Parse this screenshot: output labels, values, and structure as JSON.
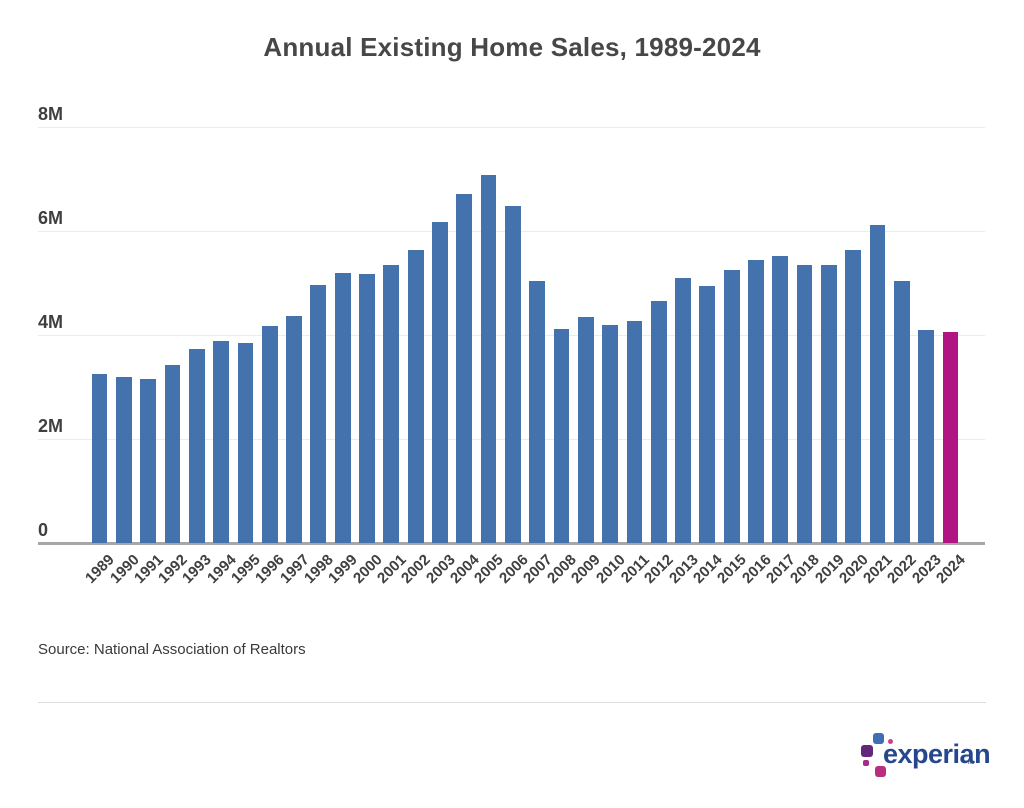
{
  "page": {
    "background": "#ffffff"
  },
  "header": {
    "title": "Annual Existing Home Sales, 1989-2024"
  },
  "chart_data": {
    "type": "bar",
    "title": "Annual Existing Home Sales, 1989-2024",
    "categories": [
      1989,
      1990,
      1991,
      1992,
      1993,
      1994,
      1995,
      1996,
      1997,
      1998,
      1999,
      2000,
      2001,
      2002,
      2003,
      2004,
      2005,
      2006,
      2007,
      2008,
      2009,
      2010,
      2011,
      2012,
      2013,
      2014,
      2015,
      2016,
      2017,
      2018,
      2019,
      2020,
      2021,
      2022,
      2023,
      2024
    ],
    "values": [
      3.25,
      3.19,
      3.15,
      3.42,
      3.74,
      3.89,
      3.85,
      4.18,
      4.37,
      4.97,
      5.19,
      5.17,
      5.34,
      5.63,
      6.18,
      6.72,
      7.08,
      6.48,
      5.03,
      4.11,
      4.34,
      4.19,
      4.26,
      4.66,
      5.09,
      4.94,
      5.25,
      5.45,
      5.51,
      5.34,
      5.34,
      5.64,
      6.12,
      5.03,
      4.09,
      4.06
    ],
    "unit": "millions of homes",
    "ylim": [
      0,
      8
    ],
    "y_ticks": [
      {
        "value": 8,
        "label": "8M"
      },
      {
        "value": 6,
        "label": "6M"
      },
      {
        "value": 4,
        "label": "4M"
      },
      {
        "value": 2,
        "label": "2M"
      },
      {
        "value": 0,
        "label": "0"
      }
    ],
    "grid": true,
    "legend": "none",
    "xlabel": "",
    "ylabel": "",
    "bar_color": "#4472ac",
    "highlight_color": "#b01583",
    "highlight_category": 2024
  },
  "footer": {
    "source": "Source: National Association of Realtors",
    "logo": {
      "wordmark": "experian",
      "trademark": "™",
      "wordmark_color": "#26478d",
      "block_colors": {
        "blue": "#406eb3",
        "pink_dot": "#cf3f8e",
        "purple": "#632678",
        "violet": "#a62c88",
        "magenta": "#ba2f7d"
      }
    }
  }
}
